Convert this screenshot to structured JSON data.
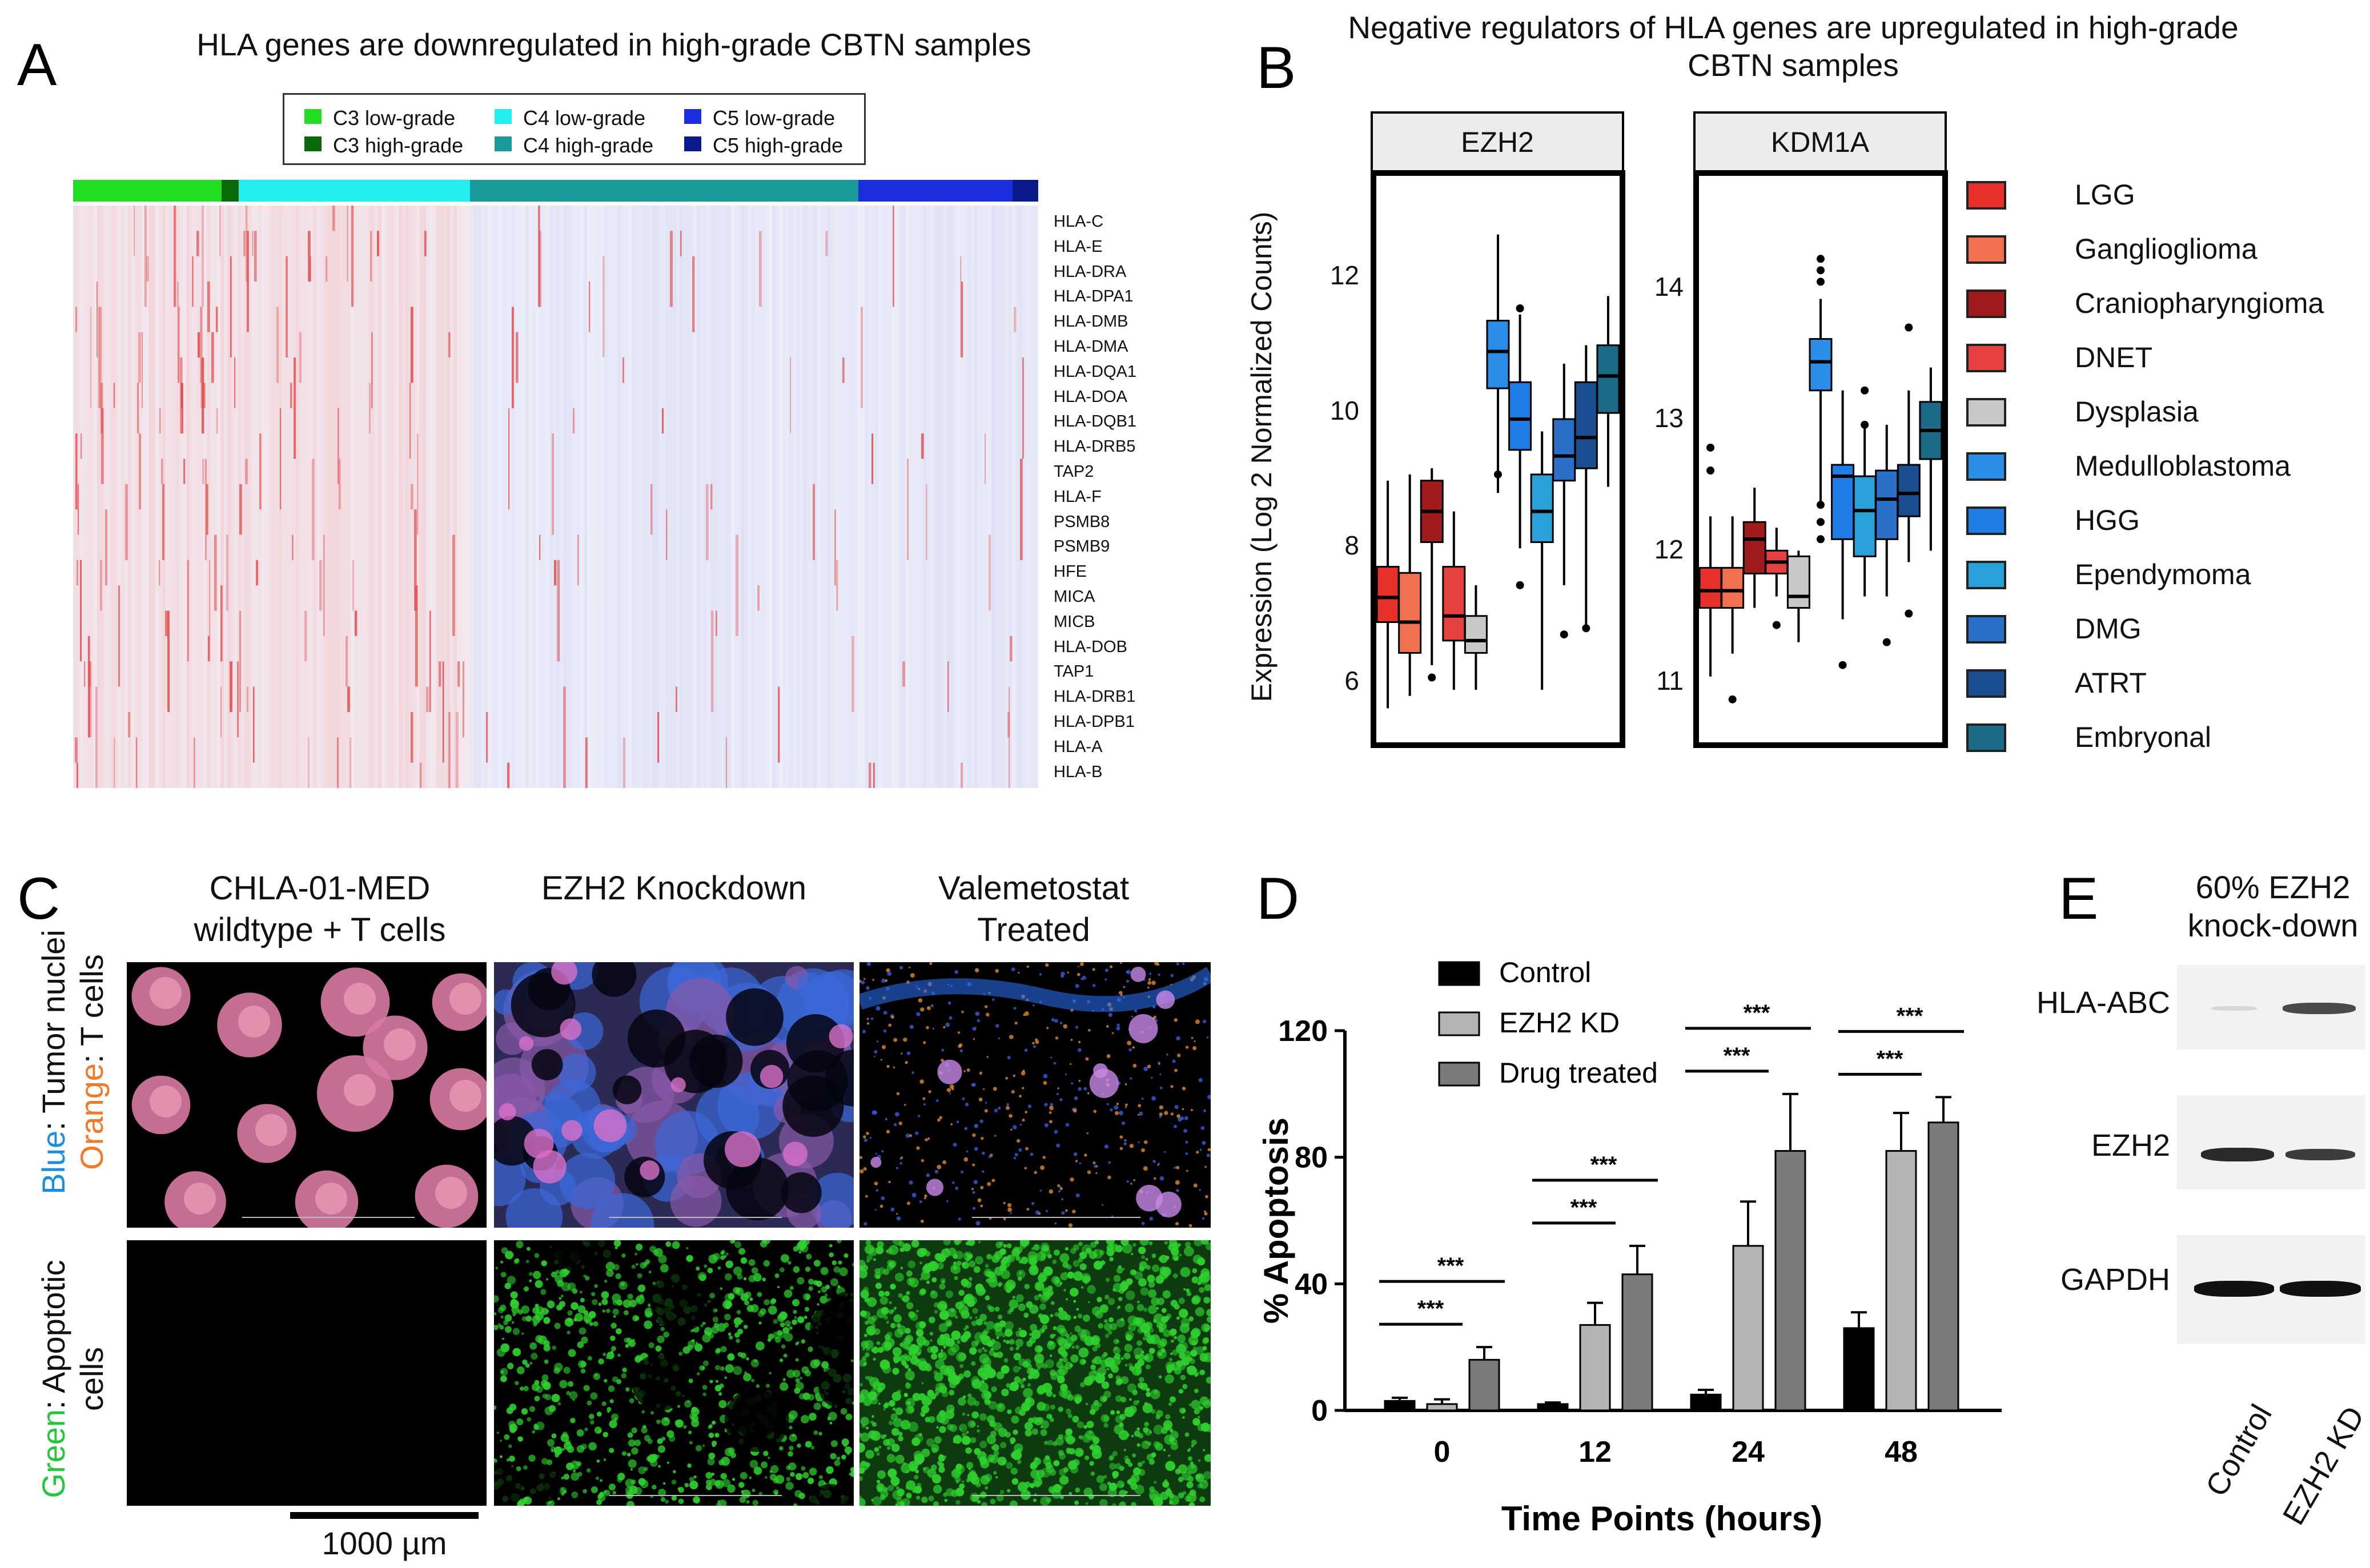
{
  "panels": {
    "a": "A",
    "b": "B",
    "c": "C",
    "d": "D",
    "e": "E"
  },
  "panelA": {
    "title": "HLA genes are downregulated in high-grade CBTN samples",
    "legend": [
      {
        "label": "C3 low-grade",
        "color": "#22dd22"
      },
      {
        "label": "C3 high-grade",
        "color": "#0a6a0a"
      },
      {
        "label": "C4 low-grade",
        "color": "#22eeee"
      },
      {
        "label": "C4 high-grade",
        "color": "#1a9a9a"
      },
      {
        "label": "C5 low-grade",
        "color": "#1a2ee0"
      },
      {
        "label": "C5 high-grade",
        "color": "#0a1a8a"
      }
    ],
    "genes": [
      "HLA-C",
      "HLA-E",
      "HLA-DRA",
      "HLA-DPA1",
      "HLA-DMB",
      "HLA-DMA",
      "HLA-DQA1",
      "HLA-DOA",
      "HLA-DQB1",
      "HLA-DRB5",
      "TAP2",
      "HLA-F",
      "PSMB8",
      "PSMB9",
      "HFE",
      "MICA",
      "MICB",
      "HLA-DOB",
      "TAP1",
      "HLA-DRB1",
      "HLA-DPB1",
      "HLA-A",
      "HLA-B"
    ]
  },
  "panelB": {
    "title": "Negative regulators of HLA genes are upregulated in high-grade CBTN samples",
    "ylabel": "Expression (Log 2 Normalized Counts)",
    "facets": [
      {
        "name": "EZH2",
        "ticks": [
          "12",
          "10",
          "8",
          "6"
        ]
      },
      {
        "name": "KDM1A",
        "ticks": [
          "14",
          "13",
          "12",
          "11"
        ]
      }
    ],
    "legend": [
      {
        "label": "LGG",
        "color": "#e8302a"
      },
      {
        "label": "Ganglioglioma",
        "color": "#f07050"
      },
      {
        "label": "Craniopharyngioma",
        "color": "#a01c1c"
      },
      {
        "label": "DNET",
        "color": "#e64040"
      },
      {
        "label": "Dysplasia",
        "color": "#c8c8c8"
      },
      {
        "label": "Medulloblastoma",
        "color": "#2a8ee8"
      },
      {
        "label": "HGG",
        "color": "#1e7ee6"
      },
      {
        "label": "Ependymoma",
        "color": "#2aa0d8"
      },
      {
        "label": "DMG",
        "color": "#2a70c8"
      },
      {
        "label": "ATRT",
        "color": "#1a4e90"
      },
      {
        "label": "Embryonal",
        "color": "#1a6a88"
      }
    ]
  },
  "panelC": {
    "columns": [
      "CHLA-01-MED wildtype + T cells",
      "EZH2 Knockdown",
      "Valemetostat Treated"
    ],
    "row1": {
      "blue": "Blue",
      "blue_rest": ": Tumor nuclei",
      "orange": "Orange",
      "orange_rest": ": T cells"
    },
    "row2": {
      "green": "Green",
      "green_rest": ": Apoptotic cells"
    },
    "scale": "1000 µm"
  },
  "chart_data": {
    "type": "bar",
    "title": "",
    "xlabel": "Time Points (hours)",
    "ylabel": "% Apoptosis",
    "categories": [
      "0",
      "12",
      "24",
      "48"
    ],
    "ylim": [
      0,
      120
    ],
    "yticks": [
      "0",
      "40",
      "80",
      "120"
    ],
    "series": [
      {
        "name": "Control",
        "values": [
          3,
          2,
          5,
          26
        ],
        "errors": [
          1,
          0.5,
          1.5,
          5
        ],
        "color": "#000000"
      },
      {
        "name": "EZH2 KD",
        "values": [
          2,
          27,
          52,
          82
        ],
        "errors": [
          1.5,
          7,
          14,
          12
        ],
        "color": "#b4b4b4"
      },
      {
        "name": "Drug treated",
        "values": [
          16,
          43,
          82,
          91
        ],
        "errors": [
          4,
          9,
          18,
          8
        ],
        "color": "#7a7a7a"
      }
    ],
    "significance": "***"
  },
  "panelE": {
    "title": "60% EZH2 knock-down",
    "proteins": [
      "HLA-ABC",
      "EZH2",
      "GAPDH"
    ],
    "lanes": [
      "Control",
      "EZH2 KD"
    ]
  }
}
